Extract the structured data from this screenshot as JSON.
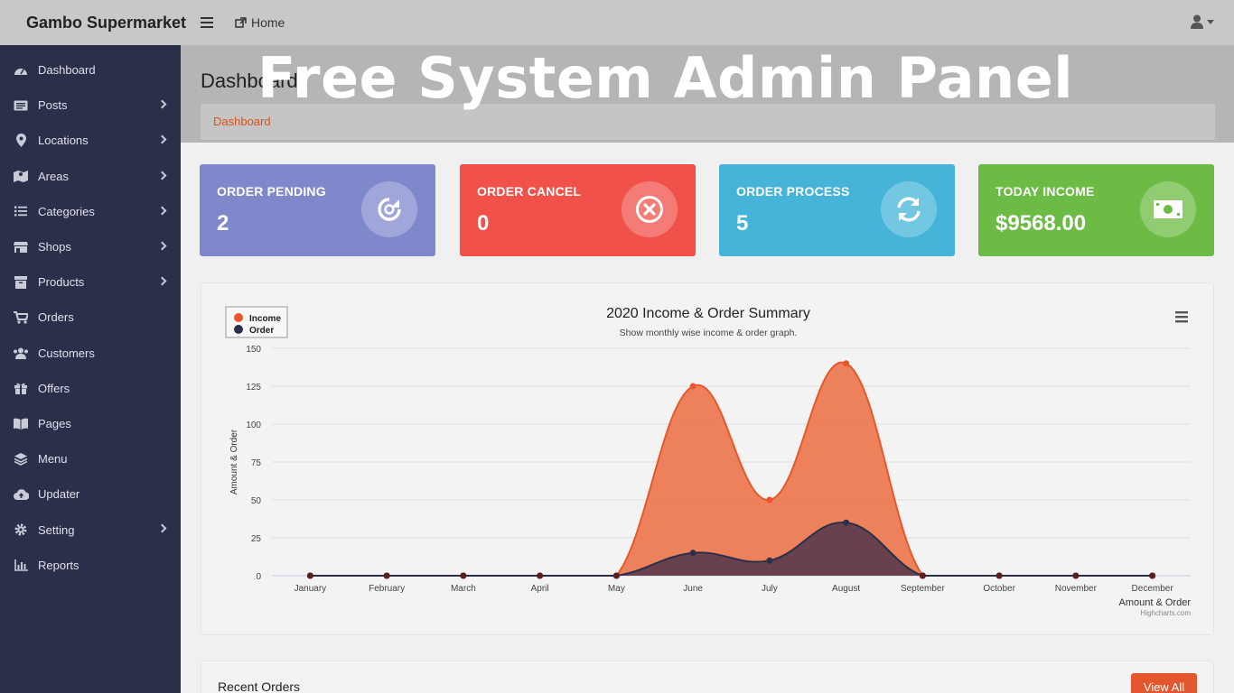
{
  "app": {
    "brand": "Gambo Supermarket"
  },
  "topnav": {
    "home_label": "Home"
  },
  "sidebar": {
    "items": [
      {
        "label": "Dashboard",
        "icon": "dashboard-icon",
        "has_children": false
      },
      {
        "label": "Posts",
        "icon": "posts-icon",
        "has_children": true
      },
      {
        "label": "Locations",
        "icon": "map-marker-icon",
        "has_children": true
      },
      {
        "label": "Areas",
        "icon": "map-icon",
        "has_children": true
      },
      {
        "label": "Categories",
        "icon": "list-icon",
        "has_children": true
      },
      {
        "label": "Shops",
        "icon": "store-icon",
        "has_children": true
      },
      {
        "label": "Products",
        "icon": "box-icon",
        "has_children": true
      },
      {
        "label": "Orders",
        "icon": "cart-icon",
        "has_children": false
      },
      {
        "label": "Customers",
        "icon": "users-icon",
        "has_children": false
      },
      {
        "label": "Offers",
        "icon": "gift-icon",
        "has_children": false
      },
      {
        "label": "Pages",
        "icon": "book-icon",
        "has_children": false
      },
      {
        "label": "Menu",
        "icon": "layers-icon",
        "has_children": false
      },
      {
        "label": "Updater",
        "icon": "cloud-upload-icon",
        "has_children": false
      },
      {
        "label": "Setting",
        "icon": "cog-icon",
        "has_children": true
      },
      {
        "label": "Reports",
        "icon": "bar-chart-icon",
        "has_children": false
      }
    ]
  },
  "header": {
    "page_title": "Dashboard",
    "breadcrumb": "Dashboard",
    "watermark": "Free System Admin Panel"
  },
  "cards": [
    {
      "label": "ORDER PENDING",
      "value": "2",
      "color": "#8088cc",
      "icon": "rotate-icon"
    },
    {
      "label": "ORDER CANCEL",
      "value": "0",
      "color": "#f05149",
      "icon": "times-circle-icon"
    },
    {
      "label": "ORDER PROCESS",
      "value": "5",
      "color": "#45b4d8",
      "icon": "sync-icon"
    },
    {
      "label": "TODAY INCOME",
      "value": "$9568.00",
      "color": "#6cbb45",
      "icon": "money-icon"
    }
  ],
  "chart_data": {
    "type": "area",
    "title": "2020 Income & Order Summary",
    "subtitle": "Show monthly wise income & order graph.",
    "ylabel": "Amount & Order",
    "xlabel": "Amount & Order",
    "credit": "Highcharts.com",
    "ylim": [
      0,
      150
    ],
    "yticks": [
      0,
      25,
      50,
      75,
      100,
      125,
      150
    ],
    "grid": true,
    "legend_position": "top-left",
    "categories": [
      "January",
      "February",
      "March",
      "April",
      "May",
      "June",
      "July",
      "August",
      "September",
      "October",
      "November",
      "December"
    ],
    "series": [
      {
        "name": "Income",
        "color": "#e8572b",
        "values": [
          0,
          0,
          0,
          0,
          0,
          125,
          50,
          140,
          0,
          0,
          0,
          0
        ]
      },
      {
        "name": "Order",
        "color": "#2b2f4a",
        "values": [
          0,
          0,
          0,
          0,
          0,
          15,
          10,
          35,
          0,
          0,
          0,
          0
        ]
      }
    ]
  },
  "recent_orders": {
    "title": "Recent Orders",
    "view_all_label": "View All"
  }
}
